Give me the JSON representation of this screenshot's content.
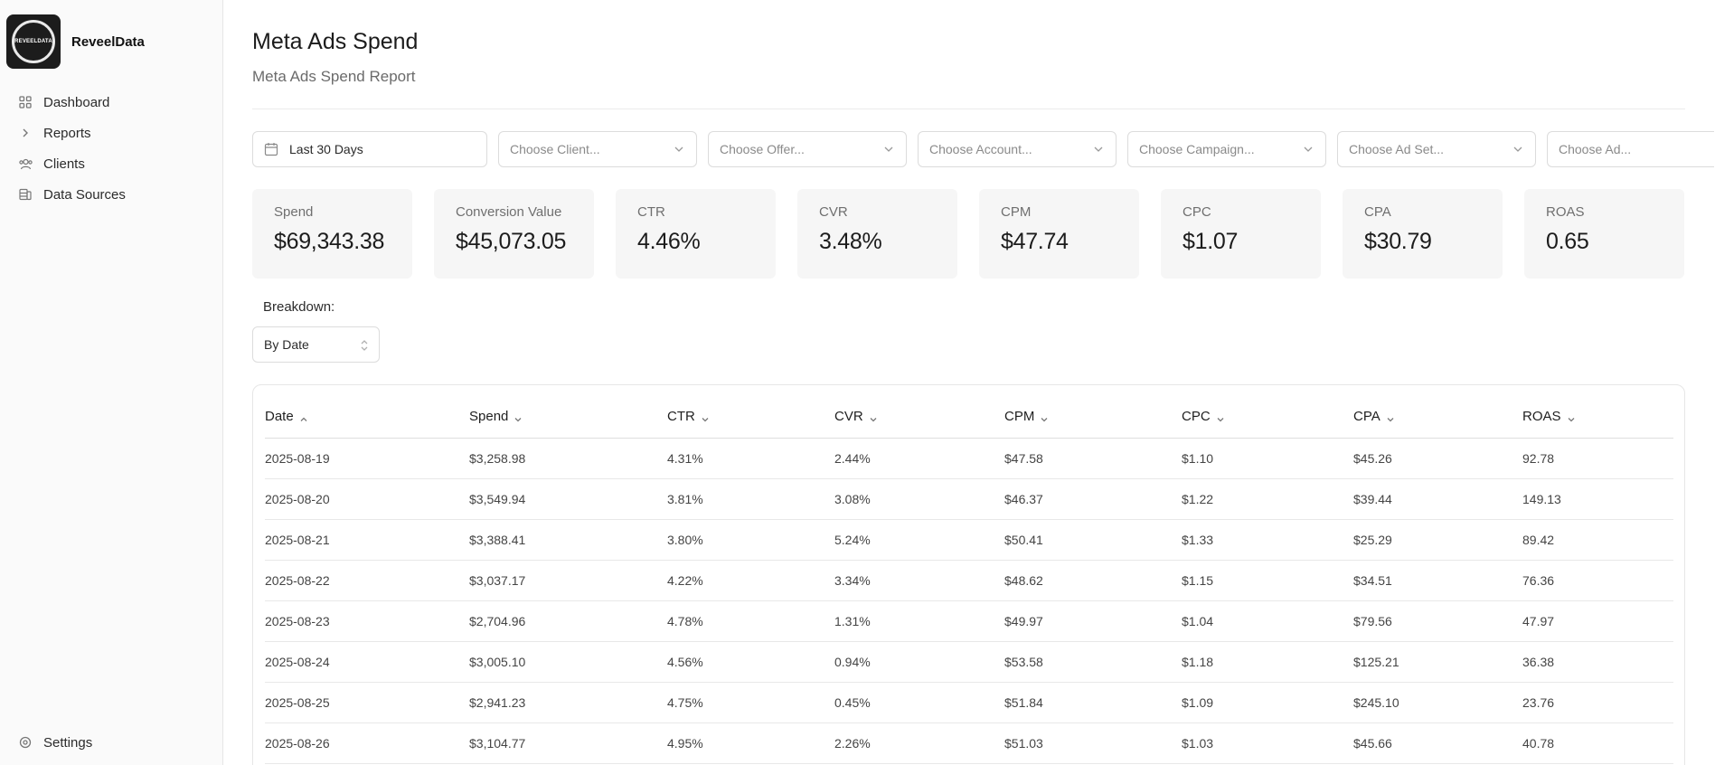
{
  "brand": {
    "name": "ReveelData",
    "logo_text": "REVEELDATA"
  },
  "sidebar": {
    "items": [
      {
        "label": "Dashboard",
        "icon": "grid-icon"
      },
      {
        "label": "Reports",
        "icon": "chevron-right-icon"
      },
      {
        "label": "Clients",
        "icon": "users-icon"
      },
      {
        "label": "Data Sources",
        "icon": "database-icon"
      }
    ],
    "settings": {
      "label": "Settings",
      "icon": "gear-icon"
    }
  },
  "header": {
    "title": "Meta Ads Spend",
    "subtitle": "Meta Ads Spend Report"
  },
  "filters": {
    "date_range": "Last 30 Days",
    "client_placeholder": "Choose Client...",
    "offer_placeholder": "Choose Offer...",
    "account_placeholder": "Choose Account...",
    "campaign_placeholder": "Choose Campaign...",
    "adset_placeholder": "Choose Ad Set...",
    "ad_placeholder": "Choose Ad..."
  },
  "metrics": [
    {
      "label": "Spend",
      "value": "$69,343.38"
    },
    {
      "label": "Conversion Value",
      "value": "$45,073.05"
    },
    {
      "label": "CTR",
      "value": "4.46%"
    },
    {
      "label": "CVR",
      "value": "3.48%"
    },
    {
      "label": "CPM",
      "value": "$47.74"
    },
    {
      "label": "CPC",
      "value": "$1.07"
    },
    {
      "label": "CPA",
      "value": "$30.79"
    },
    {
      "label": "ROAS",
      "value": "0.65"
    }
  ],
  "breakdown": {
    "label": "Breakdown:",
    "value": "By Date"
  },
  "table": {
    "columns": [
      "Date",
      "Spend",
      "CTR",
      "CVR",
      "CPM",
      "CPC",
      "CPA",
      "ROAS"
    ],
    "rows": [
      [
        "2025-08-19",
        "$3,258.98",
        "4.31%",
        "2.44%",
        "$47.58",
        "$1.10",
        "$45.26",
        "92.78"
      ],
      [
        "2025-08-20",
        "$3,549.94",
        "3.81%",
        "3.08%",
        "$46.37",
        "$1.22",
        "$39.44",
        "149.13"
      ],
      [
        "2025-08-21",
        "$3,388.41",
        "3.80%",
        "5.24%",
        "$50.41",
        "$1.33",
        "$25.29",
        "89.42"
      ],
      [
        "2025-08-22",
        "$3,037.17",
        "4.22%",
        "3.34%",
        "$48.62",
        "$1.15",
        "$34.51",
        "76.36"
      ],
      [
        "2025-08-23",
        "$2,704.96",
        "4.78%",
        "1.31%",
        "$49.97",
        "$1.04",
        "$79.56",
        "47.97"
      ],
      [
        "2025-08-24",
        "$3,005.10",
        "4.56%",
        "0.94%",
        "$53.58",
        "$1.18",
        "$125.21",
        "36.38"
      ],
      [
        "2025-08-25",
        "$2,941.23",
        "4.75%",
        "0.45%",
        "$51.84",
        "$1.09",
        "$245.10",
        "23.76"
      ],
      [
        "2025-08-26",
        "$3,104.77",
        "4.95%",
        "2.26%",
        "$51.03",
        "$1.03",
        "$45.66",
        "40.78"
      ]
    ]
  }
}
